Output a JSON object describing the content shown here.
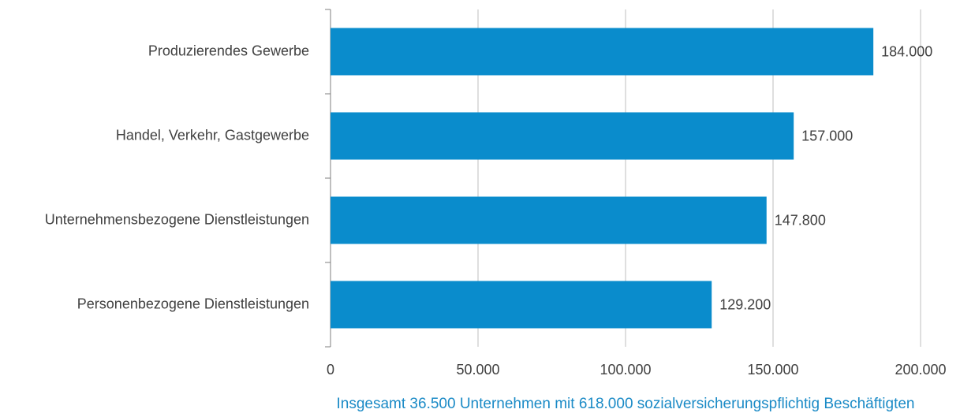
{
  "chart_data": {
    "type": "bar",
    "orientation": "horizontal",
    "categories": [
      "Produzierendes Gewerbe",
      "Handel, Verkehr, Gastgewerbe",
      "Unternehmensbezogene Dienstleistungen",
      "Personenbezogene Dienstleistungen"
    ],
    "values": [
      184000,
      157000,
      147800,
      129200
    ],
    "value_labels": [
      "184.000",
      "157.000",
      "147.800",
      "129.200"
    ],
    "color": "#0a8ccc",
    "xlim": [
      0,
      200000
    ],
    "xticks": [
      0,
      {
        "value": 50000,
        "label": "50.000"
      },
      {
        "value": 100000,
        "label": "100.000"
      },
      {
        "value": 150000,
        "label": "150.000"
      },
      {
        "value": 200000,
        "label": "200.000"
      }
    ],
    "xlabel": "Insgesamt 36.500 Unternehmen mit 618.000 sozialversicherungspflichtig Beschäftigten",
    "grid": true
  }
}
